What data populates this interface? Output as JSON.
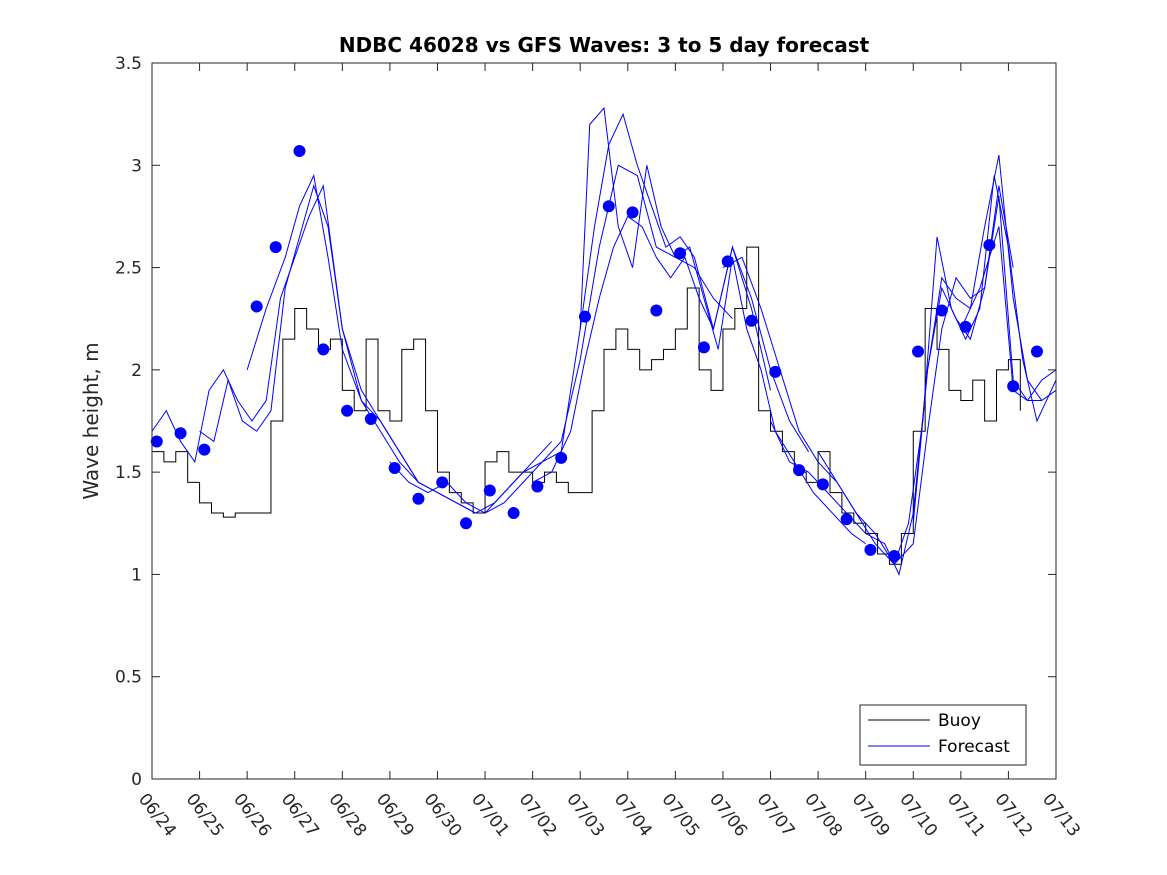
{
  "chart_data": {
    "type": "line",
    "title": "NDBC 46028 vs GFS Waves: 3 to 5 day forecast",
    "xlabel": "",
    "ylabel": "Wave height, m",
    "xlim": [
      0,
      19
    ],
    "ylim": [
      0,
      3.5
    ],
    "x_ticks": [
      0,
      1,
      2,
      3,
      4,
      5,
      6,
      7,
      8,
      9,
      10,
      11,
      12,
      13,
      14,
      15,
      16,
      17,
      18,
      19
    ],
    "x_tick_labels": [
      "06/24",
      "06/25",
      "06/26",
      "06/27",
      "06/28",
      "06/29",
      "06/30",
      "07/01",
      "07/02",
      "07/03",
      "07/04",
      "07/05",
      "07/06",
      "07/07",
      "07/08",
      "07/09",
      "07/10",
      "07/11",
      "07/12",
      "07/13"
    ],
    "y_ticks": [
      0,
      0.5,
      1,
      1.5,
      2,
      2.5,
      3,
      3.5
    ],
    "y_tick_labels": [
      "0",
      "0.5",
      "1",
      "1.5",
      "2",
      "2.5",
      "3",
      "3.5"
    ],
    "grid": false,
    "legend_position": "bottom-right",
    "colors": {
      "buoy": "#000000",
      "forecast": "#0000ff",
      "marker": "#0000ff"
    },
    "legend": [
      {
        "label": "Buoy",
        "color": "#000000"
      },
      {
        "label": "Forecast",
        "color": "#0000ff"
      }
    ],
    "series": [
      {
        "name": "Buoy",
        "color": "#000000",
        "x": [
          0.0,
          0.25,
          0.5,
          0.75,
          1.0,
          1.25,
          1.5,
          1.75,
          2.0,
          2.25,
          2.5,
          2.75,
          3.0,
          3.25,
          3.5,
          3.75,
          4.0,
          4.25,
          4.5,
          4.75,
          5.0,
          5.25,
          5.5,
          5.75,
          6.0,
          6.25,
          6.5,
          6.75,
          7.0,
          7.25,
          7.5,
          7.75,
          8.0,
          8.25,
          8.5,
          8.75,
          9.0,
          9.25,
          9.5,
          9.75,
          10.0,
          10.25,
          10.5,
          10.75,
          11.0,
          11.25,
          11.5,
          11.75,
          12.0,
          12.25,
          12.5,
          12.75,
          13.0,
          13.25,
          13.5,
          13.75,
          14.0,
          14.25,
          14.5,
          14.75,
          15.0,
          15.25,
          15.5,
          15.75,
          16.0,
          16.25,
          16.5,
          16.75,
          17.0,
          17.25,
          17.5,
          17.75,
          18.0,
          18.25
        ],
        "values": [
          1.6,
          1.55,
          1.6,
          1.45,
          1.35,
          1.3,
          1.28,
          1.3,
          1.3,
          1.3,
          1.75,
          2.15,
          2.3,
          2.2,
          2.1,
          2.15,
          1.9,
          1.8,
          2.15,
          1.8,
          1.75,
          2.1,
          2.15,
          1.8,
          1.5,
          1.4,
          1.35,
          1.3,
          1.55,
          1.6,
          1.5,
          1.5,
          1.45,
          1.5,
          1.45,
          1.4,
          1.4,
          1.8,
          2.1,
          2.2,
          2.1,
          2.0,
          2.05,
          2.1,
          2.2,
          2.4,
          2.0,
          1.9,
          2.2,
          2.3,
          2.6,
          1.8,
          1.7,
          1.6,
          1.5,
          1.45,
          1.6,
          1.4,
          1.3,
          1.25,
          1.2,
          1.1,
          1.05,
          1.2,
          1.7,
          2.3,
          2.1,
          1.9,
          1.85,
          1.95,
          1.75,
          2.0,
          2.05,
          1.8
        ]
      }
    ],
    "forecast_runs": [
      {
        "name": "",
        "x": [
          0.0,
          0.3,
          0.6,
          0.9,
          1.2,
          1.5,
          1.8,
          2.1,
          2.4,
          2.7,
          3.0,
          3.3,
          3.6,
          4.0,
          4.4,
          4.8,
          5.2,
          5.6
        ],
        "values": [
          1.7,
          1.8,
          1.65,
          1.55,
          1.9,
          2.0,
          1.85,
          1.75,
          1.85,
          2.35,
          2.55,
          2.75,
          2.9,
          2.2,
          1.85,
          1.75,
          1.6,
          1.45
        ]
      },
      {
        "name": "",
        "x": [
          1.0,
          1.3,
          1.6,
          1.9,
          2.2,
          2.5,
          2.8,
          3.1,
          3.4,
          3.7,
          4.0,
          4.4,
          4.8,
          5.2,
          5.6,
          6.0,
          6.4,
          6.8
        ],
        "values": [
          1.7,
          1.65,
          1.95,
          1.75,
          1.7,
          1.8,
          2.4,
          2.65,
          2.9,
          2.7,
          2.2,
          1.9,
          1.75,
          1.6,
          1.45,
          1.4,
          1.35,
          1.3
        ]
      },
      {
        "name": "",
        "x": [
          2.0,
          2.4,
          2.8,
          3.1,
          3.4,
          3.7,
          4.0,
          4.4,
          4.8,
          5.2,
          5.6,
          6.0,
          6.4,
          6.8,
          7.2,
          7.6,
          8.0,
          8.4
        ],
        "values": [
          2.0,
          2.3,
          2.55,
          2.8,
          2.95,
          2.55,
          2.1,
          1.85,
          1.7,
          1.55,
          1.45,
          1.4,
          1.35,
          1.3,
          1.35,
          1.45,
          1.55,
          1.65
        ]
      },
      {
        "name": "",
        "x": [
          5.0,
          5.4,
          5.8,
          6.2,
          6.6,
          7.0,
          7.4,
          7.8,
          8.2,
          8.6,
          9.0,
          9.4,
          9.8,
          10.2,
          10.6,
          11.0,
          11.4,
          11.8,
          12.2
        ],
        "values": [
          1.55,
          1.45,
          1.4,
          1.45,
          1.35,
          1.3,
          1.4,
          1.5,
          1.55,
          1.65,
          2.05,
          2.6,
          3.0,
          2.95,
          2.6,
          2.55,
          2.5,
          2.35,
          2.25
        ]
      },
      {
        "name": "",
        "x": [
          7.0,
          7.4,
          7.8,
          8.2,
          8.6,
          9.0,
          9.3,
          9.6,
          9.9,
          10.2,
          10.5,
          10.8,
          11.1,
          11.4,
          11.8,
          12.2,
          12.6,
          13.0
        ],
        "values": [
          1.3,
          1.35,
          1.45,
          1.55,
          1.6,
          2.2,
          2.7,
          3.1,
          3.25,
          3.0,
          2.8,
          2.6,
          2.65,
          2.55,
          2.2,
          2.6,
          2.3,
          1.9
        ]
      },
      {
        "name": "",
        "x": [
          8.0,
          8.4,
          8.8,
          9.1,
          9.4,
          9.7,
          10.0,
          10.3,
          10.6,
          10.9,
          11.2,
          11.5,
          11.8,
          12.2,
          12.6,
          13.0,
          13.4,
          13.8
        ],
        "values": [
          1.45,
          1.5,
          1.7,
          2.05,
          2.35,
          2.6,
          2.75,
          2.7,
          2.55,
          2.45,
          2.55,
          2.35,
          2.2,
          2.6,
          2.35,
          2.0,
          1.75,
          1.6
        ]
      },
      {
        "name": "",
        "x": [
          9.0,
          9.2,
          9.5,
          9.8,
          10.1,
          10.4,
          10.7,
          11.0,
          11.3,
          11.6,
          11.9,
          12.2,
          12.5,
          12.8,
          13.1,
          13.5,
          13.9,
          14.3,
          14.7,
          15.0
        ],
        "values": [
          2.2,
          3.2,
          3.28,
          2.7,
          2.5,
          3.0,
          2.7,
          2.55,
          2.6,
          2.35,
          2.1,
          2.55,
          2.2,
          2.0,
          1.7,
          1.55,
          1.4,
          1.3,
          1.2,
          1.15
        ]
      },
      {
        "name": "",
        "x": [
          12.0,
          12.4,
          12.8,
          13.2,
          13.6,
          14.0,
          14.4,
          14.8,
          15.2,
          15.6,
          16.0,
          16.3,
          16.6,
          16.9,
          17.2,
          17.5,
          17.8,
          18.1
        ],
        "values": [
          2.5,
          2.55,
          2.3,
          2.0,
          1.7,
          1.55,
          1.45,
          1.3,
          1.2,
          1.05,
          1.15,
          1.7,
          2.2,
          2.45,
          2.35,
          2.4,
          2.9,
          2.5
        ]
      },
      {
        "name": "",
        "x": [
          13.0,
          13.4,
          13.8,
          14.2,
          14.6,
          15.0,
          15.4,
          15.7,
          16.0,
          16.3,
          16.6,
          16.9,
          17.2,
          17.5,
          17.8,
          18.1,
          18.4,
          18.7
        ],
        "values": [
          1.75,
          1.55,
          1.5,
          1.4,
          1.3,
          1.2,
          1.15,
          1.0,
          1.3,
          2.0,
          2.45,
          2.35,
          2.3,
          2.7,
          3.05,
          2.35,
          1.95,
          1.85
        ]
      },
      {
        "name": "",
        "x": [
          14.0,
          14.4,
          14.8,
          15.2,
          15.6,
          15.9,
          16.2,
          16.5,
          16.8,
          17.1,
          17.4,
          17.7,
          18.0,
          18.3,
          18.6,
          19.0
        ],
        "values": [
          1.6,
          1.45,
          1.3,
          1.15,
          1.05,
          1.25,
          1.75,
          2.65,
          2.3,
          2.15,
          2.3,
          2.95,
          2.6,
          2.05,
          1.75,
          1.95
        ]
      },
      {
        "name": "",
        "x": [
          16.0,
          16.3,
          16.6,
          16.9,
          17.2,
          17.5,
          17.8,
          18.1,
          18.4,
          18.7,
          19.0
        ],
        "values": [
          1.25,
          2.0,
          2.4,
          2.25,
          2.15,
          2.4,
          2.85,
          1.95,
          1.85,
          1.85,
          1.9
        ]
      },
      {
        "name": "",
        "x": [
          17.0,
          17.4,
          17.8,
          18.1,
          18.4,
          18.7,
          19.0
        ],
        "values": [
          2.2,
          2.4,
          2.7,
          1.9,
          1.85,
          1.95,
          2.0
        ]
      }
    ],
    "markers": {
      "name": "",
      "x": [
        0.1,
        0.6,
        1.1,
        2.2,
        2.6,
        3.1,
        3.6,
        4.1,
        4.6,
        5.1,
        5.6,
        6.1,
        6.6,
        7.1,
        7.6,
        8.1,
        8.6,
        9.1,
        9.6,
        10.1,
        10.6,
        11.1,
        11.6,
        12.1,
        12.6,
        13.1,
        13.6,
        14.1,
        14.6,
        15.1,
        15.6,
        16.1,
        16.6,
        17.1,
        17.6,
        18.1,
        18.6
      ],
      "values": [
        1.65,
        1.69,
        1.61,
        2.31,
        2.6,
        3.07,
        2.1,
        1.8,
        1.76,
        1.52,
        1.37,
        1.45,
        1.25,
        1.41,
        1.3,
        1.43,
        1.57,
        2.26,
        2.8,
        2.77,
        2.29,
        2.57,
        2.11,
        2.53,
        2.24,
        1.99,
        1.51,
        1.44,
        1.27,
        1.12,
        1.09,
        2.09,
        2.29,
        2.21,
        2.61,
        1.92,
        2.09
      ]
    }
  }
}
